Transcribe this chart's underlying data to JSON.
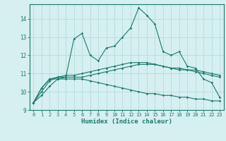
{
  "x": [
    0,
    1,
    2,
    3,
    4,
    5,
    6,
    7,
    8,
    9,
    10,
    11,
    12,
    13,
    14,
    15,
    16,
    17,
    18,
    19,
    20,
    21,
    22,
    23
  ],
  "line1": [
    9.4,
    10.2,
    10.7,
    10.7,
    10.8,
    12.9,
    13.2,
    12.0,
    11.7,
    12.4,
    12.5,
    13.0,
    13.5,
    14.6,
    14.2,
    13.7,
    12.2,
    12.0,
    12.2,
    11.4,
    11.3,
    10.7,
    10.5,
    9.7
  ],
  "line2": [
    9.4,
    10.2,
    10.7,
    10.8,
    10.8,
    10.8,
    10.8,
    10.9,
    11.0,
    11.1,
    11.2,
    11.3,
    11.4,
    11.5,
    11.5,
    11.5,
    11.4,
    11.3,
    11.3,
    11.2,
    11.2,
    11.1,
    11.0,
    10.9
  ],
  "line3": [
    9.4,
    10.0,
    10.6,
    10.8,
    10.9,
    10.9,
    11.0,
    11.1,
    11.2,
    11.3,
    11.4,
    11.5,
    11.6,
    11.6,
    11.6,
    11.5,
    11.4,
    11.3,
    11.2,
    11.2,
    11.1,
    11.0,
    10.9,
    10.8
  ],
  "line4": [
    9.4,
    9.8,
    10.3,
    10.7,
    10.7,
    10.7,
    10.7,
    10.6,
    10.5,
    10.4,
    10.3,
    10.2,
    10.1,
    10.0,
    9.9,
    9.9,
    9.8,
    9.8,
    9.7,
    9.7,
    9.6,
    9.6,
    9.5,
    9.5
  ],
  "line_color": "#1a7a6e",
  "bg_color": "#d6eff0",
  "grid_color": "#b8dfe0",
  "xlabel": "Humidex (Indice chaleur)",
  "xlim": [
    -0.5,
    23.5
  ],
  "ylim": [
    9.0,
    14.8
  ],
  "yticks": [
    9,
    10,
    11,
    12,
    13,
    14
  ],
  "xticks": [
    0,
    1,
    2,
    3,
    4,
    5,
    6,
    7,
    8,
    9,
    10,
    11,
    12,
    13,
    14,
    15,
    16,
    17,
    18,
    19,
    20,
    21,
    22,
    23
  ]
}
